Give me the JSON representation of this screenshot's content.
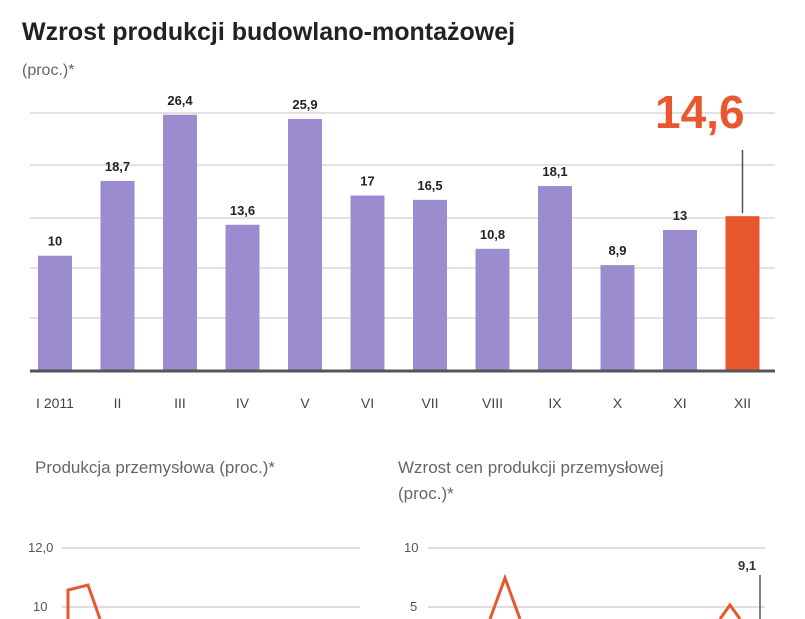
{
  "chart_data": [
    {
      "type": "bar",
      "title": "Wzrost produkcji budowlano-montażowej",
      "ylabel": "(proc.)*",
      "categories": [
        "I 2011",
        "II",
        "III",
        "IV",
        "V",
        "VI",
        "VII",
        "VIII",
        "IX",
        "X",
        "XI",
        "XII"
      ],
      "values": [
        10,
        18.7,
        26.4,
        13.6,
        25.9,
        17,
        16.5,
        10.8,
        18.1,
        8.9,
        13,
        14.6
      ],
      "value_labels": [
        "10",
        "18,7",
        "26,4",
        "13,6",
        "25,9",
        "17",
        "16,5",
        "10,8",
        "18,1",
        "8,9",
        "13",
        "14,6"
      ],
      "highlight": {
        "category": "XII",
        "label": "14,6"
      },
      "ylim": [
        -3.3,
        28
      ],
      "grid": true,
      "colors": {
        "bar": "#9b8ccf",
        "highlight": "#e8572e",
        "text": "#222222"
      }
    },
    {
      "type": "line",
      "title": "Produkcja przemysłowa (proc.)*",
      "yticks": [
        "12,0",
        "10"
      ],
      "color": "#e8572e"
    },
    {
      "type": "line",
      "title": "Wzrost cen produkcji przemysłowej (proc.)*",
      "yticks": [
        "10",
        "5"
      ],
      "end_label": "9,1",
      "color": "#e8572e"
    }
  ]
}
